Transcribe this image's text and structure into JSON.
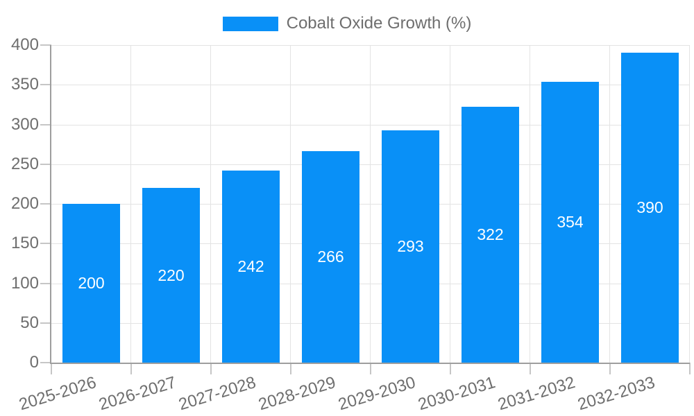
{
  "chart_data": {
    "type": "bar",
    "title": "",
    "legend_label": "Cobalt Oxide Growth (%)",
    "legend_position": "top",
    "categories": [
      "2025-2026",
      "2026-2027",
      "2027-2028",
      "2028-2029",
      "2029-2030",
      "2030-2031",
      "2031-2032",
      "2032-2033"
    ],
    "values": [
      200,
      220,
      242,
      266,
      293,
      322,
      354,
      390
    ],
    "value_labels_shown": true,
    "xlabel": "",
    "ylabel": "",
    "ylim": [
      0,
      400
    ],
    "yticks": [
      0,
      50,
      100,
      150,
      200,
      250,
      300,
      350,
      400
    ],
    "grid": true,
    "colors": {
      "bar": "#0990f7",
      "value_label": "#ffffff",
      "axis_text": "#6e6e6e",
      "gridline": "#e3e3e3",
      "tick": "#c6c6c6",
      "axis_line": "#9e9e9e",
      "background": "#ffffff"
    }
  }
}
